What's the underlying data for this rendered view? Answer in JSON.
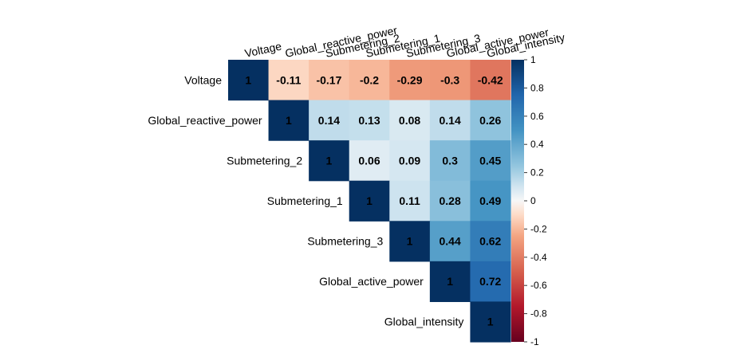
{
  "chart_data": {
    "type": "heatmap",
    "title": "",
    "variables": [
      "Voltage",
      "Global_reactive_power",
      "Submetering_2",
      "Submetering_1",
      "Submetering_3",
      "Global_active_power",
      "Global_intensity"
    ],
    "matrix": [
      [
        1,
        -0.11,
        -0.17,
        -0.2,
        -0.29,
        -0.3,
        -0.42
      ],
      [
        null,
        1,
        0.14,
        0.13,
        0.08,
        0.14,
        0.26
      ],
      [
        null,
        null,
        1,
        0.06,
        0.09,
        0.3,
        0.45
      ],
      [
        null,
        null,
        null,
        1,
        0.11,
        0.28,
        0.49
      ],
      [
        null,
        null,
        null,
        null,
        1,
        0.44,
        0.62
      ],
      [
        null,
        null,
        null,
        null,
        null,
        1,
        0.72
      ],
      [
        null,
        null,
        null,
        null,
        null,
        null,
        1
      ]
    ],
    "matrix_labels": [
      [
        "1",
        "-0.11",
        "-0.17",
        "-0.2",
        "-0.29",
        "-0.3",
        "-0.42"
      ],
      [
        "",
        "1",
        "0.14",
        "0.13",
        "0.08",
        "0.14",
        "0.26"
      ],
      [
        "",
        "",
        "1",
        "0.06",
        "0.09",
        "0.3",
        "0.45"
      ],
      [
        "",
        "",
        "",
        "1",
        "0.11",
        "0.28",
        "0.49"
      ],
      [
        "",
        "",
        "",
        "",
        "1",
        "0.44",
        "0.62"
      ],
      [
        "",
        "",
        "",
        "",
        "",
        "1",
        "0.72"
      ],
      [
        "",
        "",
        "",
        "",
        "",
        "",
        "1"
      ]
    ],
    "layout": "upper-triangle",
    "color_range": [
      -1,
      1
    ],
    "color_scale": {
      "low": "#67001F",
      "mid": "#F7F7F7",
      "high": "#053061"
    },
    "colorbar": {
      "position": "right",
      "ticks": [
        "1",
        "0.8",
        "0.6",
        "0.4",
        "0.2",
        "0",
        "-0.2",
        "-0.4",
        "-0.6",
        "-0.8",
        "-1"
      ]
    },
    "column_label_rotation": "diagonal",
    "grid": false
  }
}
